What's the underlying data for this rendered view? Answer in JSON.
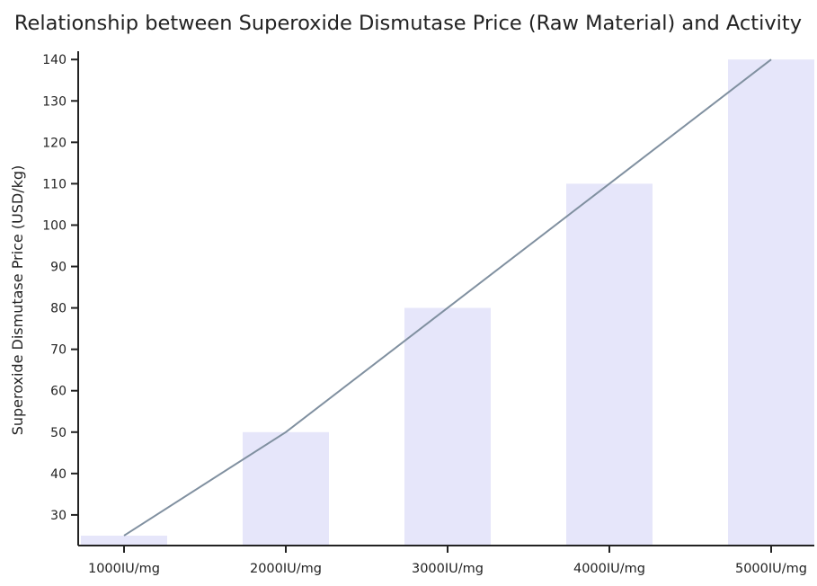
{
  "chart_data": {
    "type": "bar",
    "title": "Relationship between Superoxide Dismutase Price (Raw Material) and Activity",
    "xlabel": "",
    "ylabel": "Superoxide Dismutase Price (USD/kg)",
    "categories": [
      "1000IU/mg",
      "2000IU/mg",
      "3000IU/mg",
      "4000IU/mg",
      "5000IU/mg"
    ],
    "values": [
      25,
      50,
      80,
      110,
      140
    ],
    "line_overlay": true,
    "ylim": [
      22.6,
      142
    ],
    "yticks": [
      30,
      40,
      50,
      60,
      70,
      80,
      90,
      100,
      110,
      120,
      130,
      140
    ],
    "grid": false,
    "colors": {
      "bar": "#e6e6fa",
      "line": "#8090a0",
      "axis": "#222222"
    }
  }
}
